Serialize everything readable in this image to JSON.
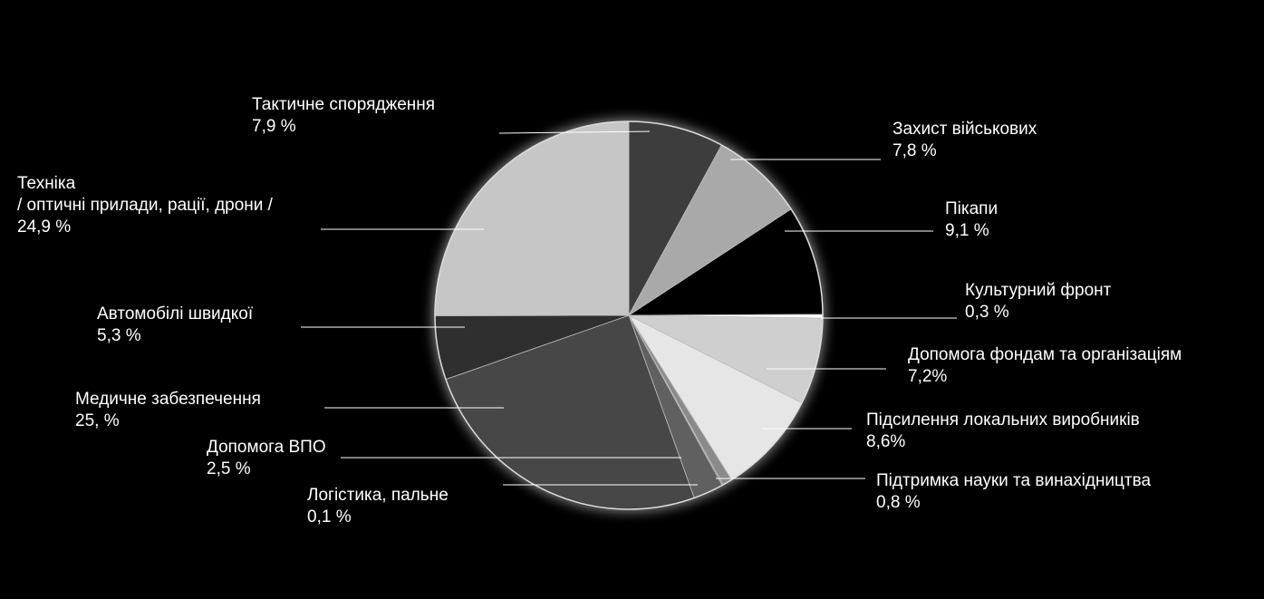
{
  "chart_data": {
    "type": "pie",
    "slices": [
      {
        "name": "Тактичне спорядження",
        "value_label": "7,9 %",
        "value": 7.9,
        "color": "#3d3d3d"
      },
      {
        "name": "Захист військових",
        "value_label": "7,8 %",
        "value": 7.8,
        "color": "#a9a9a9"
      },
      {
        "name": "Пікапи",
        "value_label": "9,1 %",
        "value": 9.1,
        "color": "#000000"
      },
      {
        "name": "Культурний фронт",
        "value_label": "0,3 %",
        "value": 0.3,
        "color": "#ffffff"
      },
      {
        "name": "Допомога фондам та організаціям",
        "value_label": "7,2%",
        "value": 7.2,
        "color": "#cfcfcf"
      },
      {
        "name": "Підсилення локальних виробників",
        "value_label": "8,6%",
        "value": 8.6,
        "color": "#e6e6e6"
      },
      {
        "name": "Підтримка науки та винахідництва",
        "value_label": "0,8 %",
        "value": 0.8,
        "color": "#8a8a8a"
      },
      {
        "name": "Логістика, пальне",
        "value_label": "0,1 %",
        "value": 0.1,
        "color": "#7a7a7a"
      },
      {
        "name": "Допомога ВПО",
        "value_label": "2,5 %",
        "value": 2.5,
        "color": "#606060"
      },
      {
        "name": "Медичне забезпечення",
        "value_label": "25,  %",
        "value": 25.0,
        "color": "#474747"
      },
      {
        "name": "Автомобілі швидкої",
        "value_label": "5,3 %",
        "value": 5.3,
        "color": "#2f2f2f"
      },
      {
        "name": "Техніка / оптичні прилади, рації, дрони /",
        "value_label": "24,9 %",
        "value": 24.9,
        "color": "#c6c6c6"
      }
    ]
  },
  "labels": [
    {
      "lines": [
        "Тактичне спорядження",
        "7,9 %"
      ]
    },
    {
      "lines": [
        "Захист військових",
        "7,8 %"
      ]
    },
    {
      "lines": [
        "Пікапи",
        "9,1 %"
      ]
    },
    {
      "lines": [
        "Культурний фронт",
        "0,3 %"
      ]
    },
    {
      "lines": [
        "Допомога фондам та організаціям",
        "7,2%"
      ]
    },
    {
      "lines": [
        "Підсилення локальних виробників",
        "8,6%"
      ]
    },
    {
      "lines": [
        "Підтримка науки та винахідництва",
        "0,8 %"
      ]
    },
    {
      "lines": [
        "Логістика, пальне",
        "0,1 %"
      ]
    },
    {
      "lines": [
        "Допомога ВПО",
        "2,5 %"
      ]
    },
    {
      "lines": [
        "Медичне забезпечення",
        "25,  %"
      ]
    },
    {
      "lines": [
        "Автомобілі швидкої",
        "5,3 %"
      ]
    },
    {
      "lines": [
        "Техніка",
        "/ оптичні прилади, рації, дрони /",
        "24,9 %"
      ]
    }
  ]
}
